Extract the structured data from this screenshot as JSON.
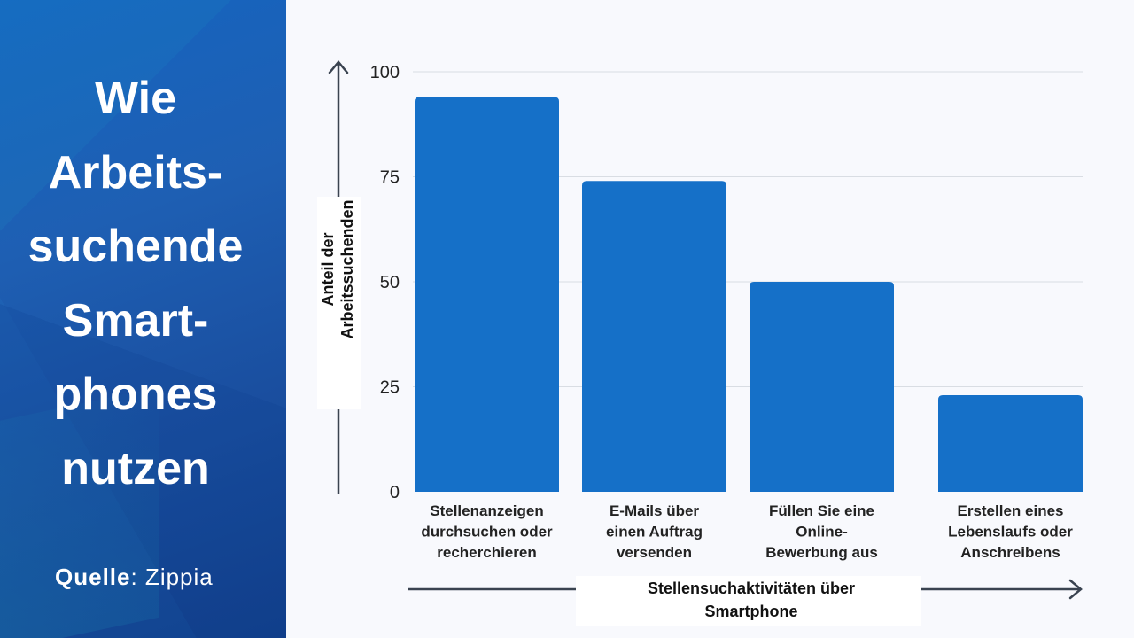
{
  "panel": {
    "title_lines": [
      "Wie",
      "Arbeits-",
      "suchende",
      "Smart-",
      "phones",
      "nutzen"
    ],
    "source_label": "Quelle",
    "source_value": ": Zippia"
  },
  "chart_data": {
    "type": "bar",
    "categories": [
      [
        "Stellenanzeigen",
        "durchsuchen oder",
        "recherchieren"
      ],
      [
        "E-Mails über",
        "einen Auftrag",
        "versenden"
      ],
      [
        "Füllen Sie eine",
        "Online-",
        "Bewerbung aus"
      ],
      [
        "Erstellen eines",
        "Lebenslaufs oder",
        "Anschreibens"
      ]
    ],
    "values": [
      94,
      74,
      50,
      23
    ],
    "ylim": [
      0,
      100
    ],
    "yticks": [
      0,
      25,
      50,
      75,
      100
    ],
    "ylabel": [
      "Anteil der",
      "Arbeitssuchenden"
    ],
    "xlabel": [
      "Stellensuchaktivitäten über",
      "Smartphone"
    ],
    "grid": true,
    "colors": {
      "bar": "#1570c8",
      "grid": "#d9dde3",
      "axis": "#3a4350"
    }
  }
}
